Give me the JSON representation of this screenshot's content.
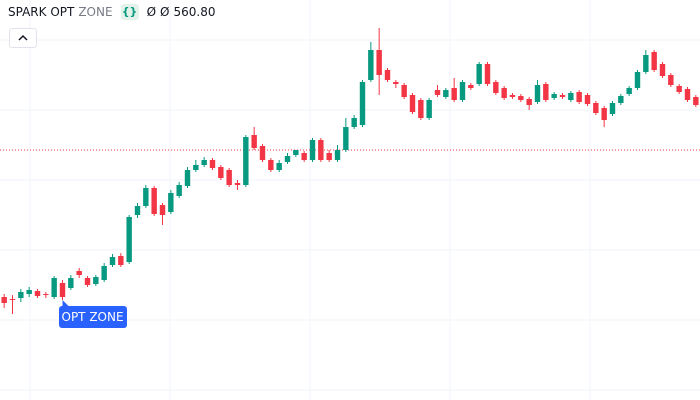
{
  "header": {
    "title": "SPARK OPT",
    "subtitle": "ZONE",
    "values": [
      "Ø",
      "Ø",
      "560.80"
    ]
  },
  "chart_data": {
    "type": "candlestick",
    "annotation": "OPT ZONE",
    "up_color": "#089981",
    "down_color": "#f23645",
    "reference_line": 560.8,
    "reference_color": "#f23645",
    "ylim": [
      535.8,
      575.8
    ],
    "ohlc": [
      [
        546.1,
        546.4,
        545.0,
        545.5
      ],
      [
        545.9,
        546.3,
        544.4,
        545.8
      ],
      [
        546.0,
        546.9,
        545.6,
        546.6
      ],
      [
        546.4,
        547.1,
        546.1,
        546.8
      ],
      [
        546.7,
        546.9,
        546.0,
        546.2
      ],
      [
        546.4,
        546.6,
        546.0,
        546.3
      ],
      [
        546.1,
        548.2,
        545.9,
        548.0
      ],
      [
        547.5,
        547.8,
        545.8,
        546.1
      ],
      [
        547.0,
        548.3,
        546.8,
        548.0
      ],
      [
        548.7,
        549.0,
        548.0,
        548.3
      ],
      [
        548.0,
        548.2,
        547.1,
        547.3
      ],
      [
        547.4,
        548.3,
        547.2,
        548.1
      ],
      [
        547.8,
        549.5,
        547.6,
        549.2
      ],
      [
        549.3,
        550.4,
        549.1,
        550.1
      ],
      [
        550.2,
        550.5,
        549.1,
        549.3
      ],
      [
        549.6,
        554.3,
        549.4,
        554.1
      ],
      [
        554.3,
        555.5,
        554.0,
        555.2
      ],
      [
        555.2,
        557.3,
        555.0,
        557.0
      ],
      [
        557.0,
        557.2,
        554.2,
        554.4
      ],
      [
        555.3,
        555.5,
        553.3,
        554.3
      ],
      [
        554.6,
        556.8,
        554.4,
        556.5
      ],
      [
        556.2,
        557.6,
        556.0,
        557.3
      ],
      [
        557.2,
        559.1,
        557.0,
        558.8
      ],
      [
        558.8,
        559.8,
        558.6,
        559.3
      ],
      [
        559.3,
        560.1,
        559.1,
        559.8
      ],
      [
        559.8,
        560.0,
        558.8,
        559.0
      ],
      [
        559.1,
        559.3,
        557.8,
        558.0
      ],
      [
        558.8,
        559.0,
        557.1,
        557.3
      ],
      [
        557.5,
        557.8,
        556.8,
        557.3
      ],
      [
        557.3,
        562.3,
        557.1,
        562.1
      ],
      [
        562.3,
        563.1,
        560.8,
        561.0
      ],
      [
        561.2,
        561.4,
        559.6,
        559.8
      ],
      [
        559.8,
        560.0,
        558.6,
        558.8
      ],
      [
        558.8,
        559.8,
        558.6,
        559.5
      ],
      [
        559.6,
        560.5,
        559.4,
        560.2
      ],
      [
        560.3,
        560.8,
        560.1,
        560.8
      ],
      [
        560.5,
        560.7,
        559.6,
        559.8
      ],
      [
        559.8,
        562.0,
        559.6,
        561.8
      ],
      [
        561.8,
        562.0,
        559.6,
        559.8
      ],
      [
        560.5,
        560.8,
        559.6,
        559.8
      ],
      [
        559.8,
        561.3,
        559.6,
        560.8
      ],
      [
        560.8,
        564.0,
        560.6,
        563.1
      ],
      [
        563.1,
        564.3,
        562.9,
        564.0
      ],
      [
        563.3,
        567.8,
        563.1,
        567.6
      ],
      [
        567.8,
        571.6,
        567.6,
        570.8
      ],
      [
        570.8,
        573.0,
        566.3,
        568.3
      ],
      [
        568.8,
        569.0,
        567.6,
        567.8
      ],
      [
        567.6,
        567.8,
        567.0,
        567.4
      ],
      [
        567.3,
        567.5,
        565.9,
        566.1
      ],
      [
        566.3,
        566.5,
        564.4,
        564.6
      ],
      [
        565.8,
        566.0,
        563.8,
        564.0
      ],
      [
        564.0,
        566.0,
        563.8,
        565.8
      ],
      [
        566.8,
        567.3,
        566.1,
        566.3
      ],
      [
        566.1,
        567.0,
        565.9,
        566.8
      ],
      [
        567.0,
        568.0,
        565.6,
        565.8
      ],
      [
        565.8,
        567.8,
        565.6,
        567.6
      ],
      [
        567.3,
        567.5,
        566.8,
        567.0
      ],
      [
        567.4,
        569.6,
        567.2,
        569.4
      ],
      [
        569.4,
        569.6,
        567.2,
        567.4
      ],
      [
        567.6,
        567.8,
        566.3,
        566.5
      ],
      [
        567.0,
        567.2,
        565.8,
        566.0
      ],
      [
        566.3,
        566.5,
        565.9,
        566.1
      ],
      [
        566.2,
        566.4,
        565.6,
        565.8
      ],
      [
        565.9,
        566.1,
        564.8,
        565.3
      ],
      [
        565.6,
        567.8,
        565.4,
        567.3
      ],
      [
        567.4,
        567.6,
        565.6,
        565.8
      ],
      [
        566.0,
        566.6,
        565.8,
        566.4
      ],
      [
        566.3,
        566.5,
        565.9,
        566.1
      ],
      [
        565.8,
        566.7,
        565.6,
        566.5
      ],
      [
        566.6,
        566.8,
        565.4,
        565.6
      ],
      [
        566.3,
        566.5,
        565.2,
        565.4
      ],
      [
        565.5,
        565.7,
        564.3,
        564.5
      ],
      [
        565.0,
        565.2,
        563.1,
        563.8
      ],
      [
        564.4,
        565.7,
        564.2,
        565.5
      ],
      [
        565.5,
        566.4,
        565.3,
        566.2
      ],
      [
        566.4,
        567.2,
        566.2,
        567.0
      ],
      [
        567.0,
        568.8,
        566.8,
        568.6
      ],
      [
        568.6,
        570.8,
        568.4,
        570.3
      ],
      [
        570.6,
        570.8,
        568.6,
        568.8
      ],
      [
        569.4,
        569.6,
        568.0,
        568.2
      ],
      [
        568.3,
        568.5,
        567.1,
        567.3
      ],
      [
        567.2,
        567.4,
        566.4,
        566.6
      ],
      [
        566.9,
        567.1,
        565.6,
        565.8
      ],
      [
        566.1,
        566.3,
        565.1,
        565.3
      ]
    ]
  }
}
